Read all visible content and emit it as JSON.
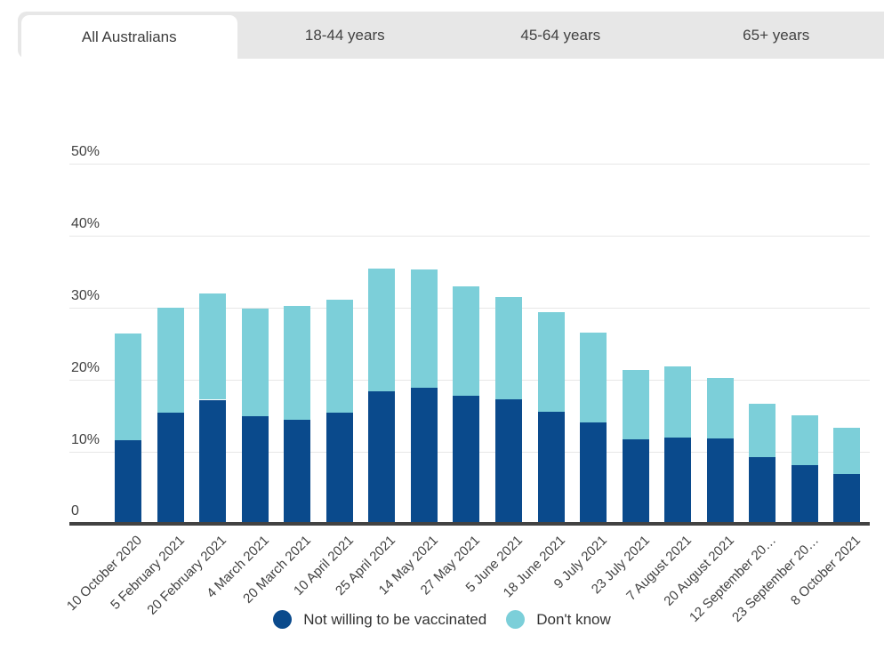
{
  "tabs": [
    {
      "label": "All Australians",
      "active": true
    },
    {
      "label": "18-44 years",
      "active": false
    },
    {
      "label": "45-64 years",
      "active": false
    },
    {
      "label": "65+ years",
      "active": false
    }
  ],
  "y_axis": {
    "ticks": [
      {
        "label": "50%",
        "value": 50
      },
      {
        "label": "40%",
        "value": 40
      },
      {
        "label": "30%",
        "value": 30
      },
      {
        "label": "20%",
        "value": 20
      },
      {
        "label": "10%",
        "value": 10
      },
      {
        "label": "0",
        "value": 0
      }
    ]
  },
  "chart_data": {
    "type": "bar",
    "stacked": true,
    "title": "",
    "xlabel": "",
    "ylabel": "",
    "ylim": [
      0,
      50
    ],
    "grid": true,
    "legend_position": "bottom",
    "categories": [
      "10 October 2020",
      "5 February 2021",
      "20 February 2021",
      "4 March 2021",
      "20 March 2021",
      "10 April 2021",
      "25 April 2021",
      "14 May 2021",
      "27 May 2021",
      "5 June 2021",
      "18 June 2021",
      "9 July 2021",
      "23 July 2021",
      "7 August 2021",
      "20 August 2021",
      "12 September 20…",
      "23 September 20…",
      "8 October 2021"
    ],
    "series": [
      {
        "name": "Not willing to be vaccinated",
        "color": "#0a4a8c",
        "values": [
          11.6,
          15.4,
          17.2,
          14.9,
          14.4,
          15.4,
          18.4,
          18.9,
          17.8,
          17.3,
          15.5,
          14.0,
          11.7,
          11.9,
          11.8,
          9.2,
          8.1,
          6.9
        ]
      },
      {
        "name": "Don't know",
        "color": "#7ccfd9",
        "values": [
          14.8,
          14.6,
          14.7,
          15.0,
          15.8,
          15.7,
          17.0,
          16.4,
          15.1,
          14.2,
          13.9,
          12.5,
          9.6,
          9.9,
          8.4,
          7.4,
          6.9,
          6.4
        ]
      }
    ]
  },
  "colors": {
    "tab_background": "#e7e7e7",
    "active_tab_background": "#ffffff",
    "gridline": "#e7e7e7",
    "axis": "#424242",
    "text": "#424242",
    "legend_text": "#333333"
  }
}
